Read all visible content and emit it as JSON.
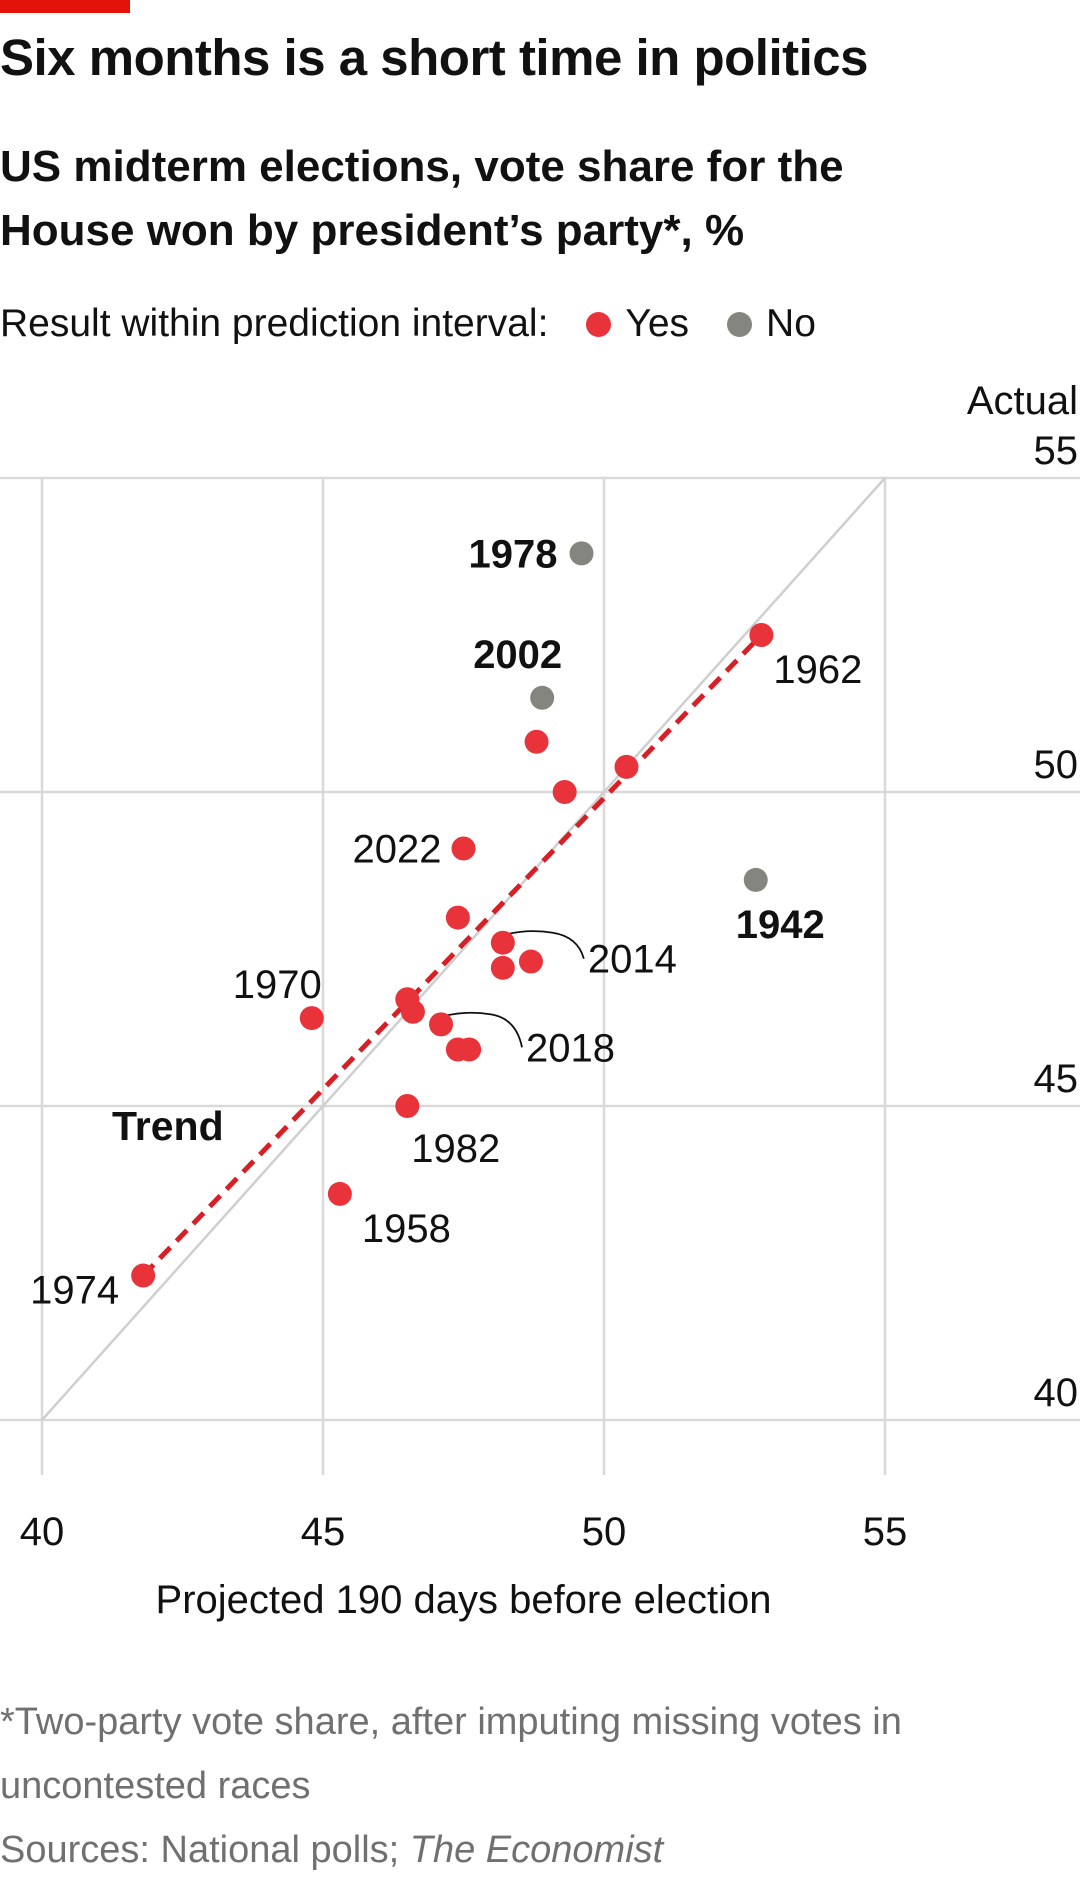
{
  "header": {
    "title": "Six months is a short time in politics",
    "subtitle": "US midterm elections, vote share for the House won by president’s party*, %"
  },
  "legend": {
    "label": "Result within prediction interval:",
    "items": [
      {
        "label": "Yes",
        "color": "#e8333a"
      },
      {
        "label": "No",
        "color": "#85857f"
      }
    ]
  },
  "colors": {
    "accent": "#e3120b",
    "yes": "#e8333a",
    "no": "#85857f",
    "grid": "#d9d9d9",
    "trend": "#d71f26"
  },
  "chart_data": {
    "type": "scatter",
    "xlabel": "Projected 190 days before election",
    "ylabel": "Actual",
    "xlim": [
      39.5,
      58.5
    ],
    "ylim": [
      39,
      56.5
    ],
    "xticks": [
      40,
      45,
      50,
      55
    ],
    "yticks": [
      40,
      45,
      50,
      55
    ],
    "grid": true,
    "diagonal_reference": true,
    "trend_label": "Trend",
    "trend": {
      "x": [
        41.8,
        52.8
      ],
      "y": [
        42.3,
        52.5
      ]
    },
    "points": [
      {
        "x": 49.6,
        "y": 53.8,
        "label": "1978",
        "within": false,
        "bold": true
      },
      {
        "x": 48.9,
        "y": 51.5,
        "label": "2002",
        "within": false,
        "bold": true
      },
      {
        "x": 52.7,
        "y": 48.6,
        "label": "1942",
        "within": false,
        "bold": true
      },
      {
        "x": 52.8,
        "y": 52.5,
        "label": "1962",
        "within": true
      },
      {
        "x": 48.8,
        "y": 50.8,
        "label": "",
        "within": true
      },
      {
        "x": 50.4,
        "y": 50.4,
        "label": "",
        "within": true
      },
      {
        "x": 49.3,
        "y": 50.0,
        "label": "",
        "within": true
      },
      {
        "x": 47.5,
        "y": 49.1,
        "label": "2022",
        "within": true
      },
      {
        "x": 47.4,
        "y": 48.0,
        "label": "",
        "within": true
      },
      {
        "x": 48.2,
        "y": 47.6,
        "label": "2014",
        "within": true
      },
      {
        "x": 48.2,
        "y": 47.2,
        "label": "",
        "within": true
      },
      {
        "x": 48.7,
        "y": 47.3,
        "label": "",
        "within": true
      },
      {
        "x": 44.8,
        "y": 46.4,
        "label": "1970",
        "within": true
      },
      {
        "x": 46.5,
        "y": 46.7,
        "label": "",
        "within": true
      },
      {
        "x": 46.6,
        "y": 46.5,
        "label": "",
        "within": true
      },
      {
        "x": 47.1,
        "y": 46.3,
        "label": "2018",
        "within": true
      },
      {
        "x": 47.4,
        "y": 45.9,
        "label": "",
        "within": true
      },
      {
        "x": 47.6,
        "y": 45.9,
        "label": "",
        "within": true
      },
      {
        "x": 46.5,
        "y": 45.0,
        "label": "1982",
        "within": true
      },
      {
        "x": 45.3,
        "y": 43.6,
        "label": "1958",
        "within": true
      },
      {
        "x": 41.8,
        "y": 42.3,
        "label": "1974",
        "within": true
      }
    ]
  },
  "footnote": {
    "note": "*Two-party vote share, after imputing missing votes in uncontested races",
    "sources_prefix": "Sources: National polls; ",
    "sources_italic": "The Economist"
  }
}
